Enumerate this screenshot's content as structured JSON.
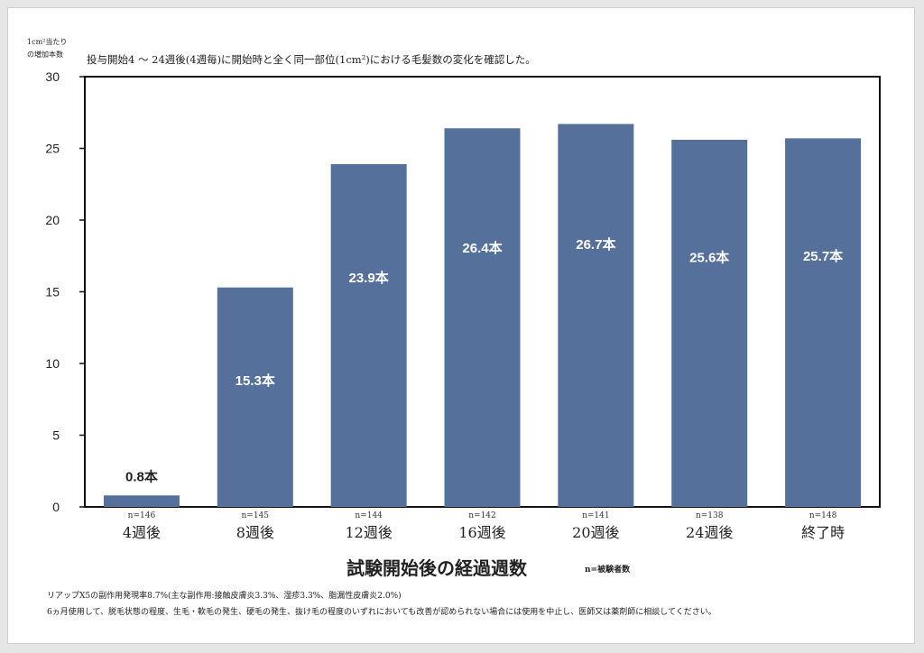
{
  "colors": {
    "bar": "#55709a",
    "axis": "#111111",
    "bar_label_inside": "#ffffff",
    "bar_label_outside": "#222222"
  },
  "y_axis_label_lines": [
    "1cm²当たり",
    "の増加本数"
  ],
  "subtitle": "投与開始4 ～ 24週後(4週毎)に開始時と全く同一部位(1cm²)における毛髪数の変化を確認した。",
  "chart_data": {
    "type": "bar",
    "title": "投与開始4 ～ 24週後(4週毎)に開始時と全く同一部位(1cm²)における毛髪数の変化を確認した。",
    "xlabel": "試験開始後の経過週数",
    "ylabel": "1cm²当たりの増加本数",
    "ylim": [
      0,
      30
    ],
    "yticks": [
      "0",
      "5",
      "10",
      "15",
      "20",
      "25",
      "30"
    ],
    "categories": [
      "4週後",
      "8週後",
      "12週後",
      "16週後",
      "20週後",
      "24週後",
      "終了時"
    ],
    "values": [
      0.8,
      15.3,
      23.9,
      26.4,
      26.7,
      25.6,
      25.7
    ],
    "data_labels": [
      "0.8本",
      "15.3本",
      "23.9本",
      "26.4本",
      "26.7本",
      "25.6本",
      "25.7本"
    ],
    "n_labels": [
      "n=146",
      "n=145",
      "n=144",
      "n=142",
      "n=141",
      "n=138",
      "n=148"
    ]
  },
  "x_title": "試験開始後の経過週数",
  "n_note": "n=被験者数",
  "footer": [
    "リアップX5の副作用発現率8.7%(主な副作用:接触皮膚炎3.3%、湿疹3.3%、脂漏性皮膚炎2.0%)",
    "6ヵ月使用して、脱毛状態の程度、生毛・軟毛の発生、硬毛の発生、抜け毛の程度のいずれにおいても改善が認められない場合には使用を中止し、医師又は薬剤師に相談してください。"
  ]
}
